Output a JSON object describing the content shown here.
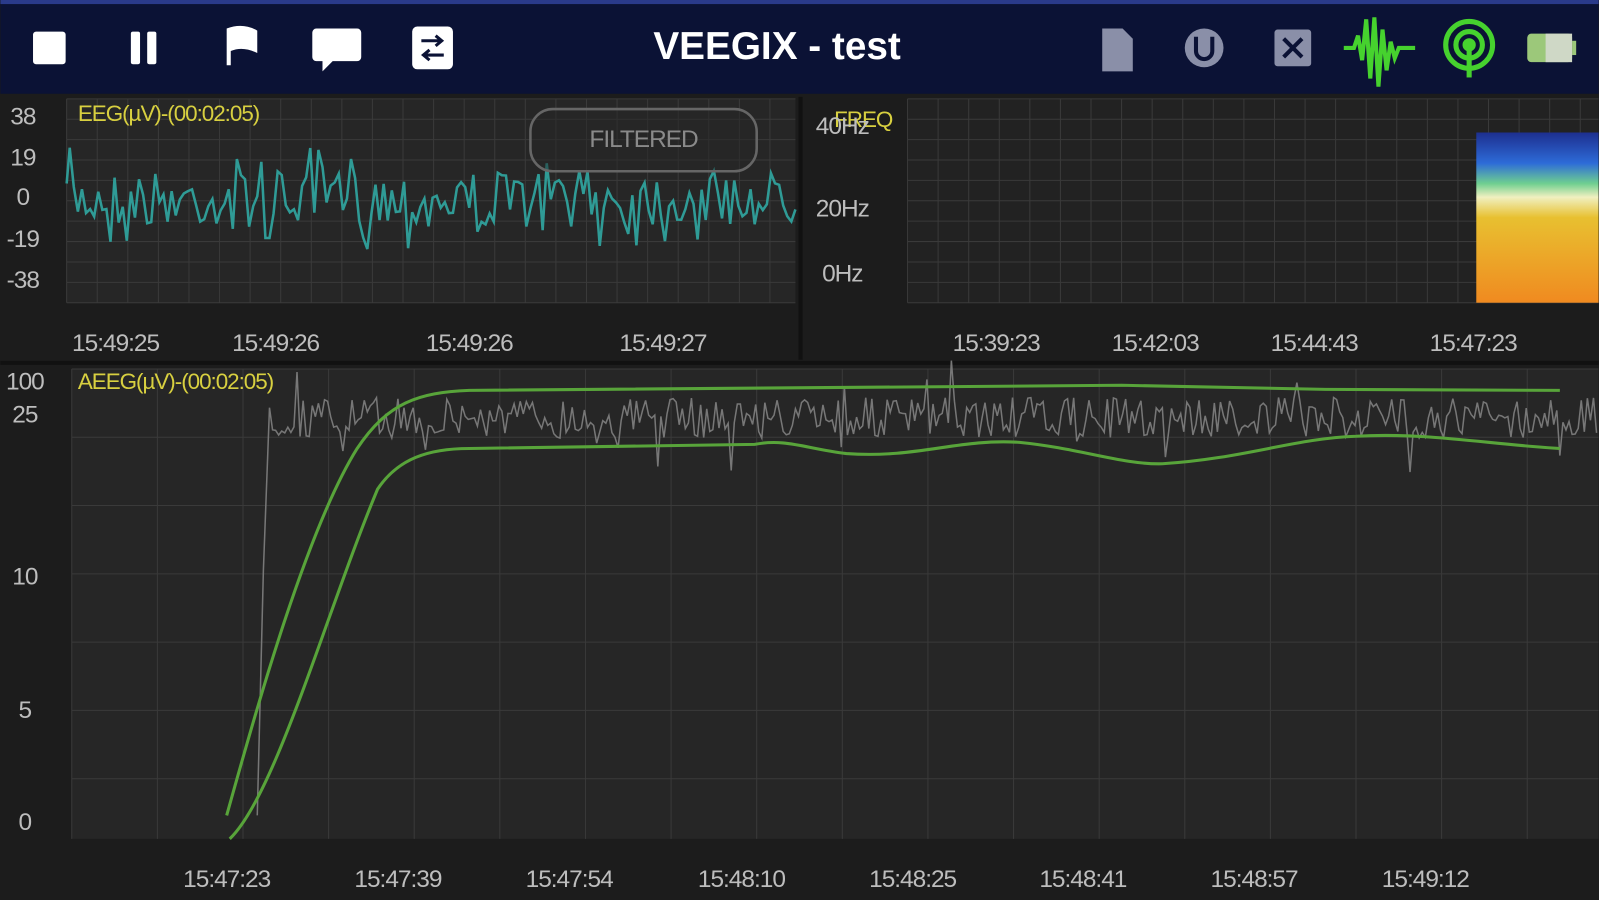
{
  "header": {
    "title": "VEEGIX - test"
  },
  "eeg": {
    "label": "EEG(µV)-(00:02:05)",
    "button": "FILTERED",
    "y_labels": [
      "38",
      "19",
      "0",
      "-19",
      "-38"
    ],
    "x_labels": [
      "15:49:25",
      "15:49:26",
      "15:49:26",
      "15:49:27"
    ]
  },
  "freq": {
    "label": "FREQ",
    "y_labels": [
      "40Hz",
      "20Hz",
      "0Hz"
    ],
    "x_labels": [
      "15:39:23",
      "15:42:03",
      "15:44:43",
      "15:47:23"
    ]
  },
  "aeeg": {
    "label": "AEEG(µV)-(00:02:05)",
    "y_labels": [
      "100",
      "25",
      "10",
      "5",
      "0"
    ],
    "x_labels": [
      "15:47:23",
      "15:47:39",
      "15:47:54",
      "15:48:10",
      "15:48:25",
      "15:48:41",
      "15:48:57",
      "15:49:12"
    ]
  }
}
